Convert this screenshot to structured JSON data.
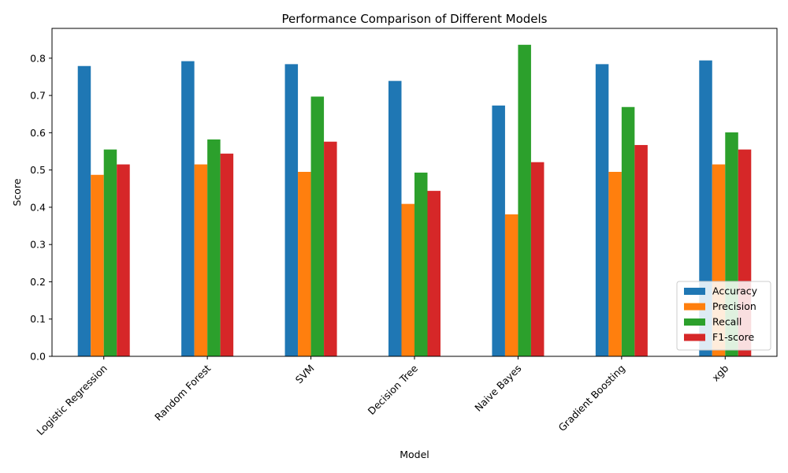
{
  "chart_data": {
    "type": "bar",
    "title": "Performance Comparison of Different Models",
    "xlabel": "Model",
    "ylabel": "Score",
    "categories": [
      "Logistic Regression",
      "Random Forest",
      "SVM",
      "Decision Tree",
      "Naive Bayes",
      "Gradient Boosting",
      "xgb"
    ],
    "series": [
      {
        "name": "Accuracy",
        "color": "#1f77b4",
        "values": [
          0.779,
          0.792,
          0.784,
          0.739,
          0.673,
          0.784,
          0.794
        ]
      },
      {
        "name": "Precision",
        "color": "#ff7f0e",
        "values": [
          0.487,
          0.515,
          0.495,
          0.409,
          0.381,
          0.495,
          0.515
        ]
      },
      {
        "name": "Recall",
        "color": "#2ca02c",
        "values": [
          0.555,
          0.582,
          0.697,
          0.493,
          0.836,
          0.669,
          0.601
        ]
      },
      {
        "name": "F1-score",
        "color": "#d62728",
        "values": [
          0.515,
          0.544,
          0.576,
          0.444,
          0.521,
          0.567,
          0.555
        ]
      }
    ],
    "ylim": [
      0,
      0.88
    ],
    "yticks": [
      0.0,
      0.1,
      0.2,
      0.3,
      0.4,
      0.5,
      0.6,
      0.7,
      0.8
    ],
    "ytick_labels": [
      "0.0",
      "0.1",
      "0.2",
      "0.3",
      "0.4",
      "0.5",
      "0.6",
      "0.7",
      "0.8"
    ],
    "grid": false,
    "legend_position": "lower-right"
  }
}
